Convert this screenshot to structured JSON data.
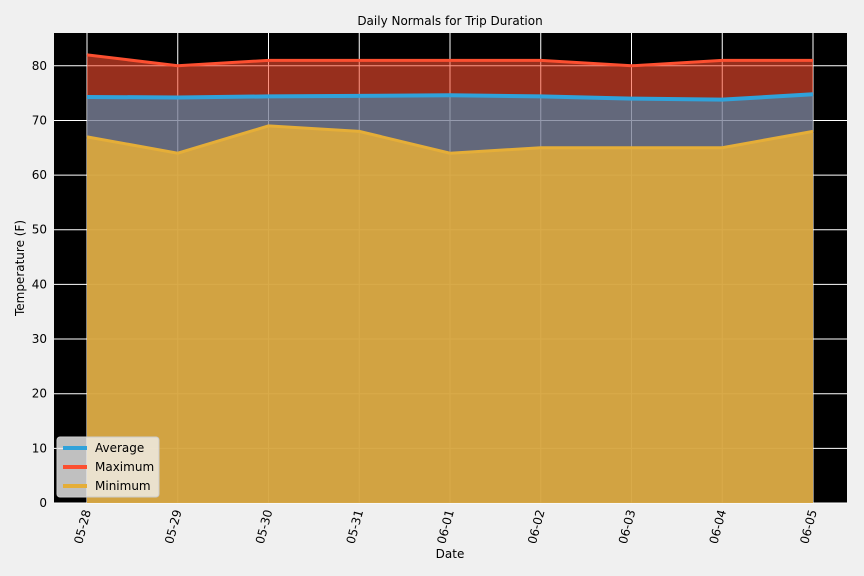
{
  "chart_data": {
    "type": "area",
    "title": "Daily Normals for Trip Duration",
    "xlabel": "Date",
    "ylabel": "Temperature (F)",
    "categories": [
      "05-28",
      "05-29",
      "05-30",
      "05-31",
      "06-01",
      "06-02",
      "06-03",
      "06-04",
      "06-05"
    ],
    "ylim": [
      0,
      86
    ],
    "yticks": [
      0,
      10,
      20,
      30,
      40,
      50,
      60,
      70,
      80
    ],
    "grid": true,
    "legend_position": "lower-left",
    "series": [
      {
        "name": "Average",
        "color": "#30a2da",
        "values": [
          74.3,
          74.2,
          74.4,
          74.5,
          74.6,
          74.4,
          74.0,
          73.8,
          74.8
        ]
      },
      {
        "name": "Maximum",
        "color": "#fc4f30",
        "values": [
          82,
          80,
          81,
          81,
          81,
          81,
          80,
          81,
          81
        ]
      },
      {
        "name": "Minimum",
        "color": "#e5ae38",
        "values": [
          67,
          64,
          69,
          68,
          64,
          65,
          65,
          65,
          68
        ]
      }
    ]
  }
}
